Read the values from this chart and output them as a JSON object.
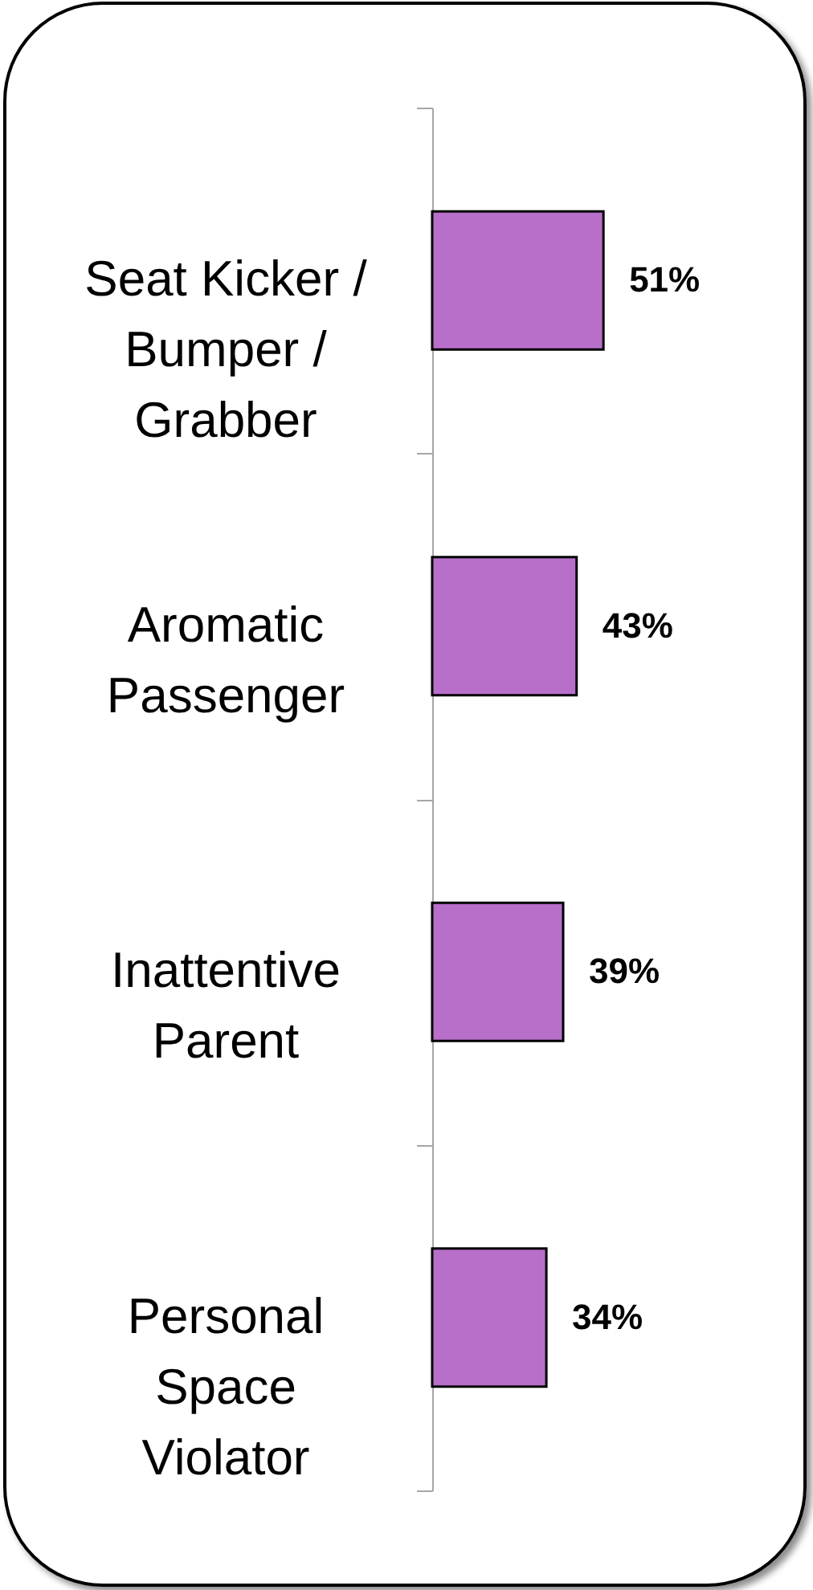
{
  "chart_data": {
    "type": "bar",
    "orientation": "horizontal",
    "categories": [
      "Seat Kicker / Bumper / Grabber",
      "Aromatic Passenger",
      "Inattentive Parent",
      "Personal Space Violator"
    ],
    "values": [
      51,
      43,
      39,
      34
    ],
    "value_labels": [
      "51%",
      "43%",
      "39%",
      "34%"
    ],
    "color": "#b86fca",
    "tick_labels": "y"
  }
}
